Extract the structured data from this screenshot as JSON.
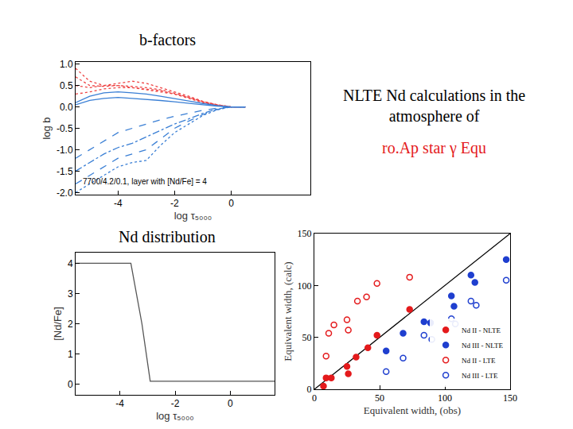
{
  "heading": {
    "text": [
      "NLTE Nd calculations in the",
      "atmosphere of"
    ],
    "subtitle": "ro.Ap star γ Equ",
    "color": "#e41a1c"
  },
  "chart_data": [
    {
      "type": "line",
      "title": "b-factors",
      "x_label": "log τ₅₀₀₀",
      "y_label": "log b",
      "x": [
        -5.5,
        -5,
        -4.5,
        -4,
        -3.5,
        -3,
        -2.5,
        -2,
        -1.5,
        -1,
        -0.5,
        0,
        0.5
      ],
      "series": [
        {
          "color": "#ee4444",
          "line_style": "dot",
          "values": [
            0.9,
            0.6,
            0.5,
            0.5,
            0.45,
            0.4,
            0.35,
            0.3,
            0.22,
            0.12,
            0.05,
            0,
            0
          ]
        },
        {
          "color": "#ee4444",
          "line_style": "dot",
          "values": [
            0.7,
            0.5,
            0.48,
            0.5,
            0.48,
            0.45,
            0.4,
            0.32,
            0.22,
            0.12,
            0.05,
            0,
            0
          ]
        },
        {
          "color": "#ee4444",
          "line_style": "dot",
          "values": [
            0.5,
            0.45,
            0.5,
            0.55,
            0.6,
            0.55,
            0.45,
            0.35,
            0.25,
            0.13,
            0.05,
            0,
            0
          ]
        },
        {
          "color": "#ee4444",
          "line_style": "dot",
          "values": [
            0.3,
            0.35,
            0.42,
            0.45,
            0.45,
            0.42,
            0.38,
            0.3,
            0.2,
            0.1,
            0.04,
            0,
            0
          ]
        },
        {
          "color": "#3a7fd5",
          "line_style": "solid",
          "values": [
            0.1,
            0.25,
            0.33,
            0.35,
            0.33,
            0.3,
            0.25,
            0.2,
            0.14,
            0.08,
            0.03,
            0,
            0
          ]
        },
        {
          "color": "#3a7fd5",
          "line_style": "solid",
          "values": [
            0.05,
            0.15,
            0.2,
            0.22,
            0.2,
            0.18,
            0.15,
            0.12,
            0.08,
            0.05,
            0.02,
            0,
            0
          ]
        },
        {
          "color": "#3a7fd5",
          "line_style": "dash",
          "values": [
            -1.2,
            -1.0,
            -0.8,
            -0.6,
            -0.5,
            -0.4,
            -0.3,
            -0.22,
            -0.15,
            -0.08,
            -0.03,
            0,
            0
          ]
        },
        {
          "color": "#3a7fd5",
          "line_style": "dashdot",
          "values": [
            -1.5,
            -1.3,
            -1.1,
            -0.95,
            -0.85,
            -0.7,
            -0.55,
            -0.4,
            -0.28,
            -0.15,
            -0.05,
            0,
            0
          ]
        },
        {
          "color": "#3a7fd5",
          "line_style": "dash",
          "values": [
            -1.8,
            -1.6,
            -1.4,
            -1.2,
            -1.1,
            -1.0,
            -0.75,
            -0.5,
            -0.33,
            -0.18,
            -0.06,
            0,
            0
          ]
        },
        {
          "color": "#3a7fd5",
          "line_style": "dot",
          "values": [
            -2.0,
            -1.8,
            -1.6,
            -1.4,
            -1.3,
            -1.25,
            -0.9,
            -0.6,
            -0.4,
            -0.2,
            -0.07,
            0,
            0
          ]
        }
      ],
      "annotations": [
        {
          "text": "7700/4.2/0.1, layer with [Nd/Fe] = 4",
          "x": -5.3,
          "y": -1.75
        }
      ],
      "xlim": [
        -5.5,
        2.8
      ],
      "xticks": [
        -4,
        -2,
        0
      ],
      "ylim": [
        -2.05,
        1.05
      ],
      "yticks": [
        {
          "value": -2,
          "label": "-2.0"
        },
        {
          "value": -1.5,
          "label": "-1.5"
        },
        {
          "value": -1,
          "label": "-1.0"
        },
        {
          "value": -0.5,
          "label": "-0.5"
        },
        {
          "value": 0,
          "label": "0.0"
        },
        {
          "value": 0.5,
          "label": "0.5"
        },
        {
          "value": 1,
          "label": "1.0"
        }
      ],
      "grid": false
    },
    {
      "type": "line",
      "title": "Nd distribution",
      "x_label": "log τ₅₀₀₀",
      "y_label": "[Nd/Fe]",
      "x": [
        -5.6,
        -3.6,
        -3.2,
        -2.9,
        1.6
      ],
      "series": [
        {
          "color": "#555555",
          "line_style": "solid",
          "values": [
            4,
            4,
            2,
            0.1,
            0.1
          ]
        }
      ],
      "xlim": [
        -5.6,
        1.6
      ],
      "xticks": [
        -4,
        -2,
        0
      ],
      "ylim": [
        -0.35,
        4.35
      ],
      "yticks": [
        0,
        1,
        2,
        3,
        4
      ],
      "grid": false
    },
    {
      "type": "scatter",
      "x_label": "Equivalent width, (obs)",
      "y_label": "Equivalent width, (calc)",
      "series": [
        {
          "type": "line",
          "color": "#000000",
          "line_style": "solid",
          "x": [
            0,
            150
          ],
          "values": [
            0,
            150
          ]
        },
        {
          "name": "Nd II - NLTE",
          "color": "#e41a1c",
          "marker": "filled",
          "x": [
            7,
            9,
            13,
            25,
            26,
            32,
            41,
            48,
            73
          ],
          "values": [
            3,
            11,
            11,
            22,
            15,
            31,
            40,
            52,
            77
          ]
        },
        {
          "name": "Nd III - NLTE",
          "color": "#1f3fcf",
          "marker": "filled",
          "x": [
            55,
            68,
            84,
            89,
            105,
            107,
            120,
            123,
            147
          ],
          "values": [
            37,
            54,
            65,
            64,
            90,
            80,
            110,
            103,
            125
          ]
        },
        {
          "name": "Nd II - LTE",
          "color": "#e41a1c",
          "marker": "open",
          "x": [
            9,
            11,
            15,
            25,
            26,
            33,
            40,
            48,
            73
          ],
          "values": [
            32,
            54,
            62,
            67,
            57,
            85,
            89,
            102,
            108
          ]
        },
        {
          "name": "Nd III - LTE",
          "color": "#1f3fcf",
          "marker": "open",
          "x": [
            55,
            68,
            84,
            90,
            105,
            108,
            120,
            124,
            147
          ],
          "values": [
            17,
            30,
            52,
            48,
            68,
            63,
            85,
            81,
            105
          ]
        }
      ],
      "xlim": [
        0,
        150
      ],
      "xticks": [
        0,
        50,
        100,
        150
      ],
      "ylim": [
        0,
        150
      ],
      "yticks": [
        0,
        50,
        100,
        150
      ],
      "grid": false,
      "legend": "lower right"
    }
  ]
}
